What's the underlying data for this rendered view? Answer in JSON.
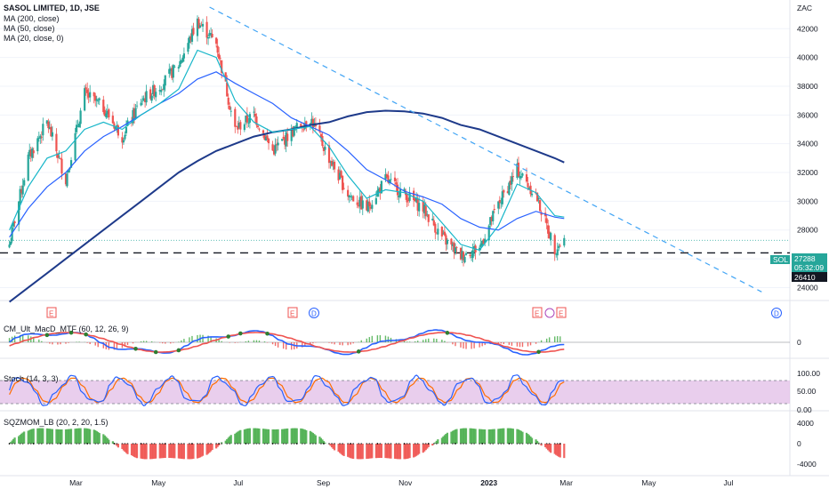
{
  "header": {
    "title": "SASOL LIMITED, 1D, JSE",
    "indicators": [
      "MA (200, close)",
      "MA (50, close)",
      "MA (20, close, 0)"
    ]
  },
  "colors": {
    "up": "#26a69a",
    "down": "#ef5350",
    "ma200": "#1e3a8a",
    "ma50": "#2962ff",
    "ma20": "#17b6c9",
    "trendline": "#42a5f5",
    "macd": "#2962ff",
    "signal": "#ef5350",
    "stoch_band": "#e1bee7",
    "sqz_pos": "#4caf50",
    "sqz_neg": "#ef5350"
  },
  "price_axis": {
    "currency": "ZAC",
    "ticks": [
      "42000",
      "40000",
      "38000",
      "36000",
      "34000",
      "32000",
      "30000",
      "28000",
      "24000"
    ]
  },
  "price_tags": {
    "symbol": "SOL",
    "last": "27288",
    "countdown": "05:32:09",
    "level": "26410"
  },
  "time_axis": [
    "Mar",
    "May",
    "Jul",
    "Sep",
    "Nov",
    "2023",
    "Mar",
    "May",
    "Jul"
  ],
  "event_marks": [
    "E",
    "E",
    "D",
    "E",
    "E",
    "D",
    "E"
  ],
  "panes": {
    "macd": {
      "label": "CM_Ult_MacD_MTF (60, 12, 26, 9)",
      "ticks": [
        "0"
      ]
    },
    "stoch": {
      "label": "Stoch (14, 3, 3)",
      "ticks": [
        "100.00",
        "50.00",
        "0.00"
      ]
    },
    "sqz": {
      "label": "SQZMOM_LB (20, 2, 20, 1.5)",
      "ticks": [
        "4000",
        "0",
        "-4000"
      ]
    }
  },
  "chart_data": {
    "type": "line",
    "title": "SASOL LIMITED, 1D, JSE",
    "xlabel": "",
    "ylabel": "",
    "y_scale": "linear",
    "ylim": [
      22900,
      43700
    ],
    "x": [
      "2022-01-10",
      "2022-01-24",
      "2022-02-07",
      "2022-02-21",
      "2022-03-07",
      "2022-03-21",
      "2022-04-04",
      "2022-04-18",
      "2022-05-02",
      "2022-05-16",
      "2022-05-30",
      "2022-06-13",
      "2022-06-27",
      "2022-07-11",
      "2022-07-25",
      "2022-08-08",
      "2022-08-22",
      "2022-09-05",
      "2022-09-19",
      "2022-10-03",
      "2022-10-17",
      "2022-10-31",
      "2022-11-14",
      "2022-11-28",
      "2022-12-12",
      "2022-12-26",
      "2023-01-09",
      "2023-01-23",
      "2023-02-06",
      "2023-02-20",
      "2023-02-27"
    ],
    "series": [
      {
        "name": "",
        "values": [
          27000,
          33000,
          35500,
          31500,
          37500,
          36500,
          34500,
          37000,
          38000,
          39500,
          42500,
          41000,
          35000,
          36000,
          33500,
          34800,
          35800,
          33000,
          30500,
          29500,
          31500,
          30500,
          29500,
          27500,
          26200,
          26800,
          29800,
          32200,
          30400,
          26700,
          27288
        ]
      }
    ],
    "moving_averages": [
      {
        "name": "MA (200, close)",
        "values": [
          23000,
          24000,
          25000,
          26000,
          27000,
          28000,
          29000,
          30000,
          31000,
          32000,
          32800,
          33500,
          34000,
          34500,
          34800,
          35000,
          35300,
          35500,
          35900,
          36200,
          36300,
          36250,
          36100,
          35800,
          35300,
          35000,
          34500,
          34000,
          33500,
          33000,
          32700
        ]
      },
      {
        "name": "MA (50, close)",
        "values": [
          27500,
          29500,
          31000,
          32000,
          33500,
          34500,
          35200,
          36000,
          36800,
          37500,
          38500,
          39000,
          38200,
          37500,
          36800,
          35800,
          35200,
          34600,
          33500,
          32200,
          31500,
          30700,
          30300,
          29800,
          28800,
          28200,
          28000,
          28800,
          29300,
          28900,
          28800
        ]
      },
      {
        "name": "MA (20, close, 0)",
        "values": [
          28000,
          31000,
          33000,
          33500,
          35000,
          35500,
          35000,
          36000,
          36800,
          37800,
          40500,
          40000,
          37000,
          35500,
          34800,
          35000,
          35200,
          33800,
          31800,
          30200,
          30800,
          30600,
          30000,
          28500,
          27000,
          26600,
          28300,
          31200,
          30600,
          29000,
          28900
        ]
      }
    ],
    "horizontal_level": 26410,
    "last_price": 27288,
    "trendline": {
      "from": [
        "2022-06-08",
        43500
      ],
      "to": [
        "2023-07-24",
        23700
      ]
    }
  }
}
